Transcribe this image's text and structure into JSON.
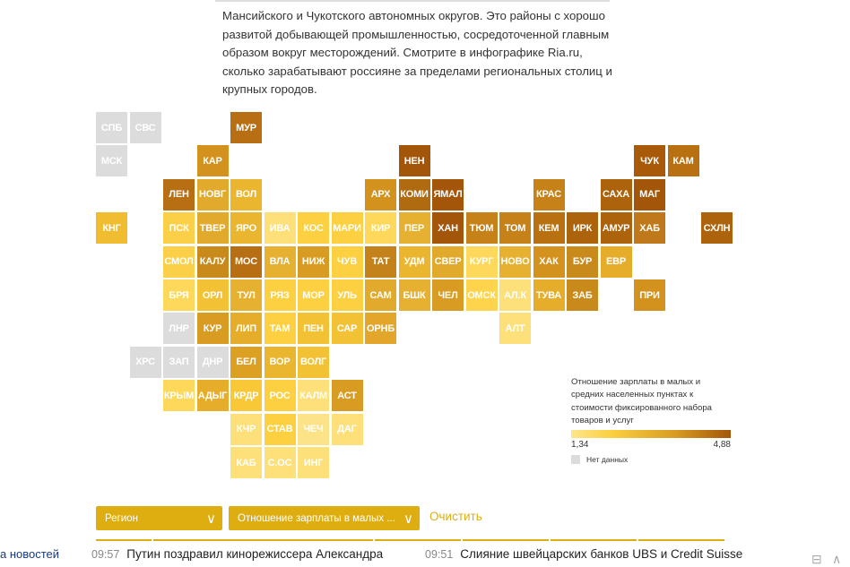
{
  "intro_text": "Мансийского и Чукотского автономных округов. Это районы с хорошо развитой добывающей промышленностью, сосредоточенной главным образом вокруг месторождений. Смотрите в инфографике Ria.ru, сколько зарабатывают россияне за пределами региональных столиц и крупных городов.",
  "chart_data": {
    "type": "heatmap",
    "description_from_legend": "Отношение зарплаты в малых и средних населенных пунктах к стоимости фиксированного набора товаров и услуг",
    "scale_min": "1,34",
    "scale_max": "4,88",
    "no_data_color": "#dcdcdc",
    "regions": [
      {
        "label": "СПБ",
        "row": 0,
        "col": 0,
        "color": "#dcdcdc"
      },
      {
        "label": "СВС",
        "row": 0,
        "col": 1,
        "color": "#dcdcdc"
      },
      {
        "label": "МУР",
        "row": 0,
        "col": 4,
        "color": "#b86e12"
      },
      {
        "label": "МСК",
        "row": 1,
        "col": 0,
        "color": "#dcdcdc"
      },
      {
        "label": "КАР",
        "row": 1,
        "col": 3,
        "color": "#d3921e"
      },
      {
        "label": "НЕН",
        "row": 1,
        "col": 9,
        "color": "#a3560a"
      },
      {
        "label": "ЧУК",
        "row": 1,
        "col": 16,
        "color": "#a85a08"
      },
      {
        "label": "КАМ",
        "row": 1,
        "col": 17,
        "color": "#b87011"
      },
      {
        "label": "ЛЕН",
        "row": 2,
        "col": 2,
        "color": "#b86e12"
      },
      {
        "label": "НОВГ",
        "row": 2,
        "col": 3,
        "color": "#e2aa2c"
      },
      {
        "label": "ВОЛ",
        "row": 2,
        "col": 4,
        "color": "#eab630"
      },
      {
        "label": "АРХ",
        "row": 2,
        "col": 8,
        "color": "#d3921e"
      },
      {
        "label": "КОМИ",
        "row": 2,
        "col": 9,
        "color": "#b06a10"
      },
      {
        "label": "ЯМАЛ",
        "row": 2,
        "col": 10,
        "color": "#a3560a"
      },
      {
        "label": "КРАС",
        "row": 2,
        "col": 13,
        "color": "#c68219"
      },
      {
        "label": "САХА",
        "row": 2,
        "col": 15,
        "color": "#ad620c"
      },
      {
        "label": "МАГ",
        "row": 2,
        "col": 16,
        "color": "#a3560a"
      },
      {
        "label": "КНГ",
        "row": 3,
        "col": 0,
        "color": "#f0bd30"
      },
      {
        "label": "ПСК",
        "row": 3,
        "col": 2,
        "color": "#fbd048"
      },
      {
        "label": "ТВЕР",
        "row": 3,
        "col": 3,
        "color": "#e2aa2c"
      },
      {
        "label": "ЯРО",
        "row": 3,
        "col": 4,
        "color": "#eab630"
      },
      {
        "label": "ИВА",
        "row": 3,
        "col": 5,
        "color": "#fde07a"
      },
      {
        "label": "КОС",
        "row": 3,
        "col": 6,
        "color": "#fcd040"
      },
      {
        "label": "МАРИ",
        "row": 3,
        "col": 7,
        "color": "#fcd040"
      },
      {
        "label": "КИР",
        "row": 3,
        "col": 8,
        "color": "#fdd85a"
      },
      {
        "label": "ПЕР",
        "row": 3,
        "col": 9,
        "color": "#e6b030"
      },
      {
        "label": "ХАН",
        "row": 3,
        "col": 10,
        "color": "#a3560a"
      },
      {
        "label": "ТЮМ",
        "row": 3,
        "col": 11,
        "color": "#c68219"
      },
      {
        "label": "ТОМ",
        "row": 3,
        "col": 12,
        "color": "#c68219"
      },
      {
        "label": "КЕМ",
        "row": 3,
        "col": 13,
        "color": "#b87011"
      },
      {
        "label": "ИРК",
        "row": 3,
        "col": 14,
        "color": "#ad620c"
      },
      {
        "label": "АМУР",
        "row": 3,
        "col": 15,
        "color": "#ad620c"
      },
      {
        "label": "ХАБ",
        "row": 3,
        "col": 16,
        "color": "#c0791a"
      },
      {
        "label": "СХЛН",
        "row": 3,
        "col": 18,
        "color": "#ad620c"
      },
      {
        "label": "СМОЛ",
        "row": 4,
        "col": 2,
        "color": "#fbd048"
      },
      {
        "label": "КАЛУ",
        "row": 4,
        "col": 3,
        "color": "#c98a1c"
      },
      {
        "label": "МОС",
        "row": 4,
        "col": 4,
        "color": "#b86e12"
      },
      {
        "label": "ВЛА",
        "row": 4,
        "col": 5,
        "color": "#e6b030"
      },
      {
        "label": "НИЖ",
        "row": 4,
        "col": 6,
        "color": "#d89c22"
      },
      {
        "label": "ЧУВ",
        "row": 4,
        "col": 7,
        "color": "#fcd040"
      },
      {
        "label": "ТАТ",
        "row": 4,
        "col": 8,
        "color": "#c4821a"
      },
      {
        "label": "УДМ",
        "row": 4,
        "col": 9,
        "color": "#eab630"
      },
      {
        "label": "СВЕР",
        "row": 4,
        "col": 10,
        "color": "#e2aa2c"
      },
      {
        "label": "КУРГ",
        "row": 4,
        "col": 11,
        "color": "#fdd85a"
      },
      {
        "label": "НОВО",
        "row": 4,
        "col": 12,
        "color": "#e6b030"
      },
      {
        "label": "ХАК",
        "row": 4,
        "col": 13,
        "color": "#d3921e"
      },
      {
        "label": "БУР",
        "row": 4,
        "col": 14,
        "color": "#c98a1c"
      },
      {
        "label": "ЕВР",
        "row": 4,
        "col": 15,
        "color": "#e6ad2a"
      },
      {
        "label": "БРЯ",
        "row": 5,
        "col": 2,
        "color": "#fdd85a"
      },
      {
        "label": "ОРЛ",
        "row": 5,
        "col": 3,
        "color": "#f3c234"
      },
      {
        "label": "ТУЛ",
        "row": 5,
        "col": 4,
        "color": "#e6b030"
      },
      {
        "label": "РЯЗ",
        "row": 5,
        "col": 5,
        "color": "#fcd040"
      },
      {
        "label": "МОР",
        "row": 5,
        "col": 6,
        "color": "#fcd040"
      },
      {
        "label": "УЛЬ",
        "row": 5,
        "col": 7,
        "color": "#fcd040"
      },
      {
        "label": "САМ",
        "row": 5,
        "col": 8,
        "color": "#e2aa2c"
      },
      {
        "label": "БШК",
        "row": 5,
        "col": 9,
        "color": "#e6b030"
      },
      {
        "label": "ЧЕЛ",
        "row": 5,
        "col": 10,
        "color": "#d89c22"
      },
      {
        "label": "ОМСК",
        "row": 5,
        "col": 11,
        "color": "#fdd44c"
      },
      {
        "label": "АЛ.К",
        "row": 5,
        "col": 12,
        "color": "#fde07a"
      },
      {
        "label": "ТУВА",
        "row": 5,
        "col": 13,
        "color": "#e6ad2a"
      },
      {
        "label": "ЗАБ",
        "row": 5,
        "col": 14,
        "color": "#c98a1c"
      },
      {
        "label": "ПРИ",
        "row": 5,
        "col": 16,
        "color": "#d3921e"
      },
      {
        "label": "ЛНР",
        "row": 6,
        "col": 2,
        "color": "#dcdcdc"
      },
      {
        "label": "КУР",
        "row": 6,
        "col": 3,
        "color": "#d89c22"
      },
      {
        "label": "ЛИП",
        "row": 6,
        "col": 4,
        "color": "#e6ad2a"
      },
      {
        "label": "ТАМ",
        "row": 6,
        "col": 5,
        "color": "#fcd040"
      },
      {
        "label": "ПЕН",
        "row": 6,
        "col": 6,
        "color": "#f3c234"
      },
      {
        "label": "САР",
        "row": 6,
        "col": 7,
        "color": "#f3c234"
      },
      {
        "label": "ОРНБ",
        "row": 6,
        "col": 8,
        "color": "#e2a62a"
      },
      {
        "label": "АЛТ",
        "row": 6,
        "col": 12,
        "color": "#fde07a"
      },
      {
        "label": "ХРС",
        "row": 7,
        "col": 1,
        "color": "#dcdcdc"
      },
      {
        "label": "ЗАП",
        "row": 7,
        "col": 2,
        "color": "#dcdcdc"
      },
      {
        "label": "ДНР",
        "row": 7,
        "col": 3,
        "color": "#dcdcdc"
      },
      {
        "label": "БЕЛ",
        "row": 7,
        "col": 4,
        "color": "#dca022"
      },
      {
        "label": "ВОР",
        "row": 7,
        "col": 5,
        "color": "#eab630"
      },
      {
        "label": "ВОЛГ",
        "row": 7,
        "col": 6,
        "color": "#f3c234"
      },
      {
        "label": "КРЫМ",
        "row": 8,
        "col": 2,
        "color": "#fdd85a"
      },
      {
        "label": "АДЫГ",
        "row": 8,
        "col": 3,
        "color": "#e6ad2a"
      },
      {
        "label": "КРДР",
        "row": 8,
        "col": 4,
        "color": "#f8c836"
      },
      {
        "label": "РОС",
        "row": 8,
        "col": 5,
        "color": "#fcd040"
      },
      {
        "label": "КАЛМ",
        "row": 8,
        "col": 6,
        "color": "#fde07a"
      },
      {
        "label": "АСТ",
        "row": 8,
        "col": 7,
        "color": "#d89c22"
      },
      {
        "label": "КЧР",
        "row": 9,
        "col": 4,
        "color": "#fde07a"
      },
      {
        "label": "СТАВ",
        "row": 9,
        "col": 5,
        "color": "#fcd040"
      },
      {
        "label": "ЧЕЧ",
        "row": 9,
        "col": 6,
        "color": "#fde387"
      },
      {
        "label": "ДАГ",
        "row": 9,
        "col": 7,
        "color": "#fde07a"
      },
      {
        "label": "КАБ",
        "row": 10,
        "col": 4,
        "color": "#fde07a"
      },
      {
        "label": "С.ОС",
        "row": 10,
        "col": 5,
        "color": "#fde07a"
      },
      {
        "label": "ИНГ",
        "row": 10,
        "col": 6,
        "color": "#fde07a"
      }
    ]
  },
  "legend": {
    "title": "Отношение зарплаты в малых и средних населенных пунктах к стоимости фиксированного набора товаров и услуг",
    "min_label": "1,34",
    "max_label": "4,88",
    "no_data_label": "Нет данных"
  },
  "filters": {
    "region_label": "Регион",
    "metric_label": "Отношение зарплаты в малых ...",
    "clear_label": "Очистить",
    "accent_color": "#deae10"
  },
  "ticker": {
    "feed_label": "а новостей",
    "items": [
      {
        "time": "09:57",
        "text": "Путин поздравил кинорежиссера Александра"
      },
      {
        "time": "09:51",
        "text": "Слияние швейцарских банков UBS и Credit Suisse"
      }
    ]
  }
}
